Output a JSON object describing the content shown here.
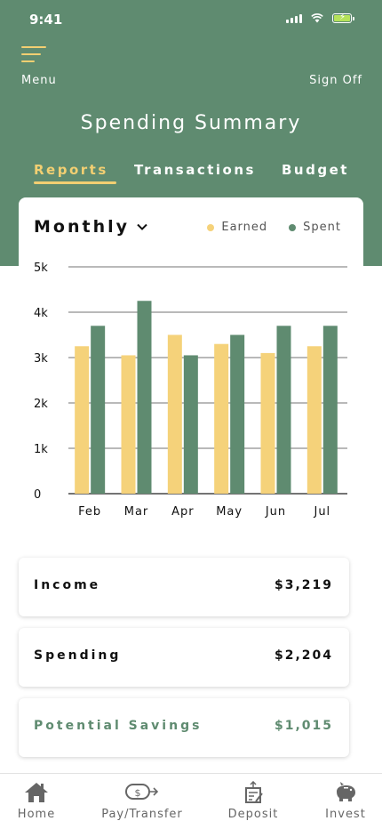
{
  "status_bar": {
    "time": "9:41"
  },
  "header": {
    "menu_label": "Menu",
    "signoff_label": "Sign Off",
    "title": "Spending Summary",
    "tabs": [
      {
        "label": "Reports",
        "active": true
      },
      {
        "label": "Transactions",
        "active": false
      },
      {
        "label": "Budget",
        "active": false
      }
    ]
  },
  "chart_card": {
    "period_selector": "Monthly",
    "legend": [
      {
        "label": "Earned",
        "color": "#f5d27a"
      },
      {
        "label": "Spent",
        "color": "#5f8b70"
      }
    ]
  },
  "chart_data": {
    "type": "bar",
    "categories": [
      "Feb",
      "Mar",
      "Apr",
      "May",
      "Jun",
      "Jul"
    ],
    "series": [
      {
        "name": "Earned",
        "color": "#f5d27a",
        "values": [
          3250,
          3050,
          3500,
          3300,
          3100,
          3250
        ]
      },
      {
        "name": "Spent",
        "color": "#5f8b70",
        "values": [
          3700,
          4250,
          3050,
          3500,
          3700,
          3700
        ]
      }
    ],
    "yticks": [
      "0",
      "1k",
      "2k",
      "3k",
      "4k",
      "5k"
    ],
    "ylim": [
      0,
      5000
    ],
    "grid": true,
    "legend_position": "top-right"
  },
  "summary": [
    {
      "label": "Income",
      "value": "$3,219",
      "accent": false
    },
    {
      "label": "Spending",
      "value": "$2,204",
      "accent": false
    },
    {
      "label": "Potential Savings",
      "value": "$1,015",
      "accent": true
    }
  ],
  "tabbar": [
    {
      "label": "Home",
      "icon": "home-icon"
    },
    {
      "label": "Pay/Transfer",
      "icon": "pay-transfer-icon"
    },
    {
      "label": "Deposit",
      "icon": "deposit-icon"
    },
    {
      "label": "Invest",
      "icon": "piggy-bank-icon"
    }
  ]
}
